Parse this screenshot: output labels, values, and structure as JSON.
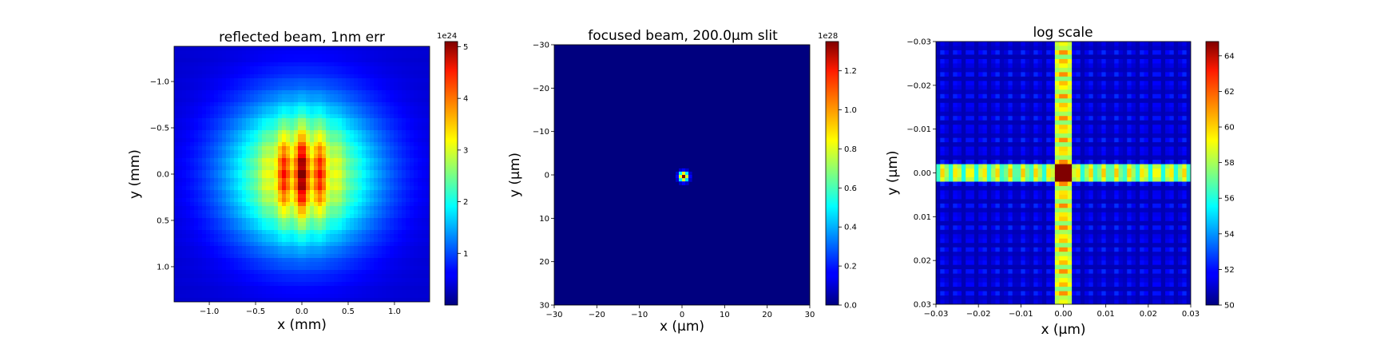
{
  "chart_data": [
    {
      "type": "heatmap",
      "title": "reflected beam, 1nm err",
      "xlabel": "x (mm)",
      "ylabel": "y (mm)",
      "xlim": [
        -1.38,
        1.38
      ],
      "ylim": [
        1.38,
        -1.38
      ],
      "x_ticks": [
        -1.0,
        -0.5,
        0.0,
        0.5,
        1.0
      ],
      "x_tick_labels": [
        "−1.0",
        "−0.5",
        "0.0",
        "0.5",
        "1.0"
      ],
      "y_ticks": [
        -1.0,
        -0.5,
        0.0,
        0.5,
        1.0
      ],
      "y_tick_labels": [
        "−1.0",
        "−0.5",
        "0.0",
        "0.5",
        "1.0"
      ],
      "colorbar": {
        "range": [
          0,
          5.1
        ],
        "ticks": [
          1,
          2,
          3,
          4,
          5
        ],
        "tick_labels": [
          "1",
          "2",
          "3",
          "4",
          "5"
        ],
        "exponent_label": "1e24",
        "colormap": "jet"
      },
      "description": "broad beam with central lobes"
    },
    {
      "type": "heatmap",
      "title": "focused beam, 200.0μm slit",
      "xlabel": "x (μm)",
      "ylabel": "y (μm)",
      "xlim": [
        -30,
        30
      ],
      "ylim": [
        30,
        -30
      ],
      "x_ticks": [
        -30,
        -20,
        -10,
        0,
        10,
        20,
        30
      ],
      "x_tick_labels": [
        "−30",
        "−20",
        "−10",
        "0",
        "10",
        "20",
        "30"
      ],
      "y_ticks": [
        -30,
        -20,
        -10,
        0,
        10,
        20,
        30
      ],
      "y_tick_labels": [
        "−30",
        "−20",
        "−10",
        "0",
        "10",
        "20",
        "30"
      ],
      "colorbar": {
        "range": [
          0,
          1.35
        ],
        "ticks": [
          0.0,
          0.2,
          0.4,
          0.6,
          0.8,
          1.0,
          1.2
        ],
        "tick_labels": [
          "0.0",
          "0.2",
          "0.4",
          "0.6",
          "0.8",
          "1.0",
          "1.2"
        ],
        "exponent_label": "1e28",
        "colormap": "jet"
      },
      "peak": {
        "x": 0.5,
        "y": 0.5
      }
    },
    {
      "type": "heatmap",
      "title": "log scale",
      "xlabel": "x (μm)",
      "ylabel": "y (μm)",
      "xlim": [
        -0.03,
        0.03
      ],
      "ylim": [
        0.03,
        -0.03
      ],
      "x_ticks": [
        -0.03,
        -0.02,
        -0.01,
        0.0,
        0.01,
        0.02,
        0.03
      ],
      "x_tick_labels": [
        "−0.03",
        "−0.02",
        "−0.01",
        "0.00",
        "0.01",
        "0.02",
        "0.03"
      ],
      "y_ticks": [
        -0.03,
        -0.02,
        -0.01,
        0.0,
        0.01,
        0.02,
        0.03
      ],
      "y_tick_labels": [
        "−0.03",
        "−0.02",
        "−0.01",
        "0.00",
        "0.01",
        "0.02",
        "0.03"
      ],
      "colorbar": {
        "range": [
          50,
          64.8
        ],
        "ticks": [
          50,
          52,
          54,
          56,
          58,
          60,
          62,
          64
        ],
        "tick_labels": [
          "50",
          "52",
          "54",
          "56",
          "58",
          "60",
          "62",
          "64"
        ],
        "exponent_label": "",
        "colormap": "jet"
      }
    }
  ]
}
